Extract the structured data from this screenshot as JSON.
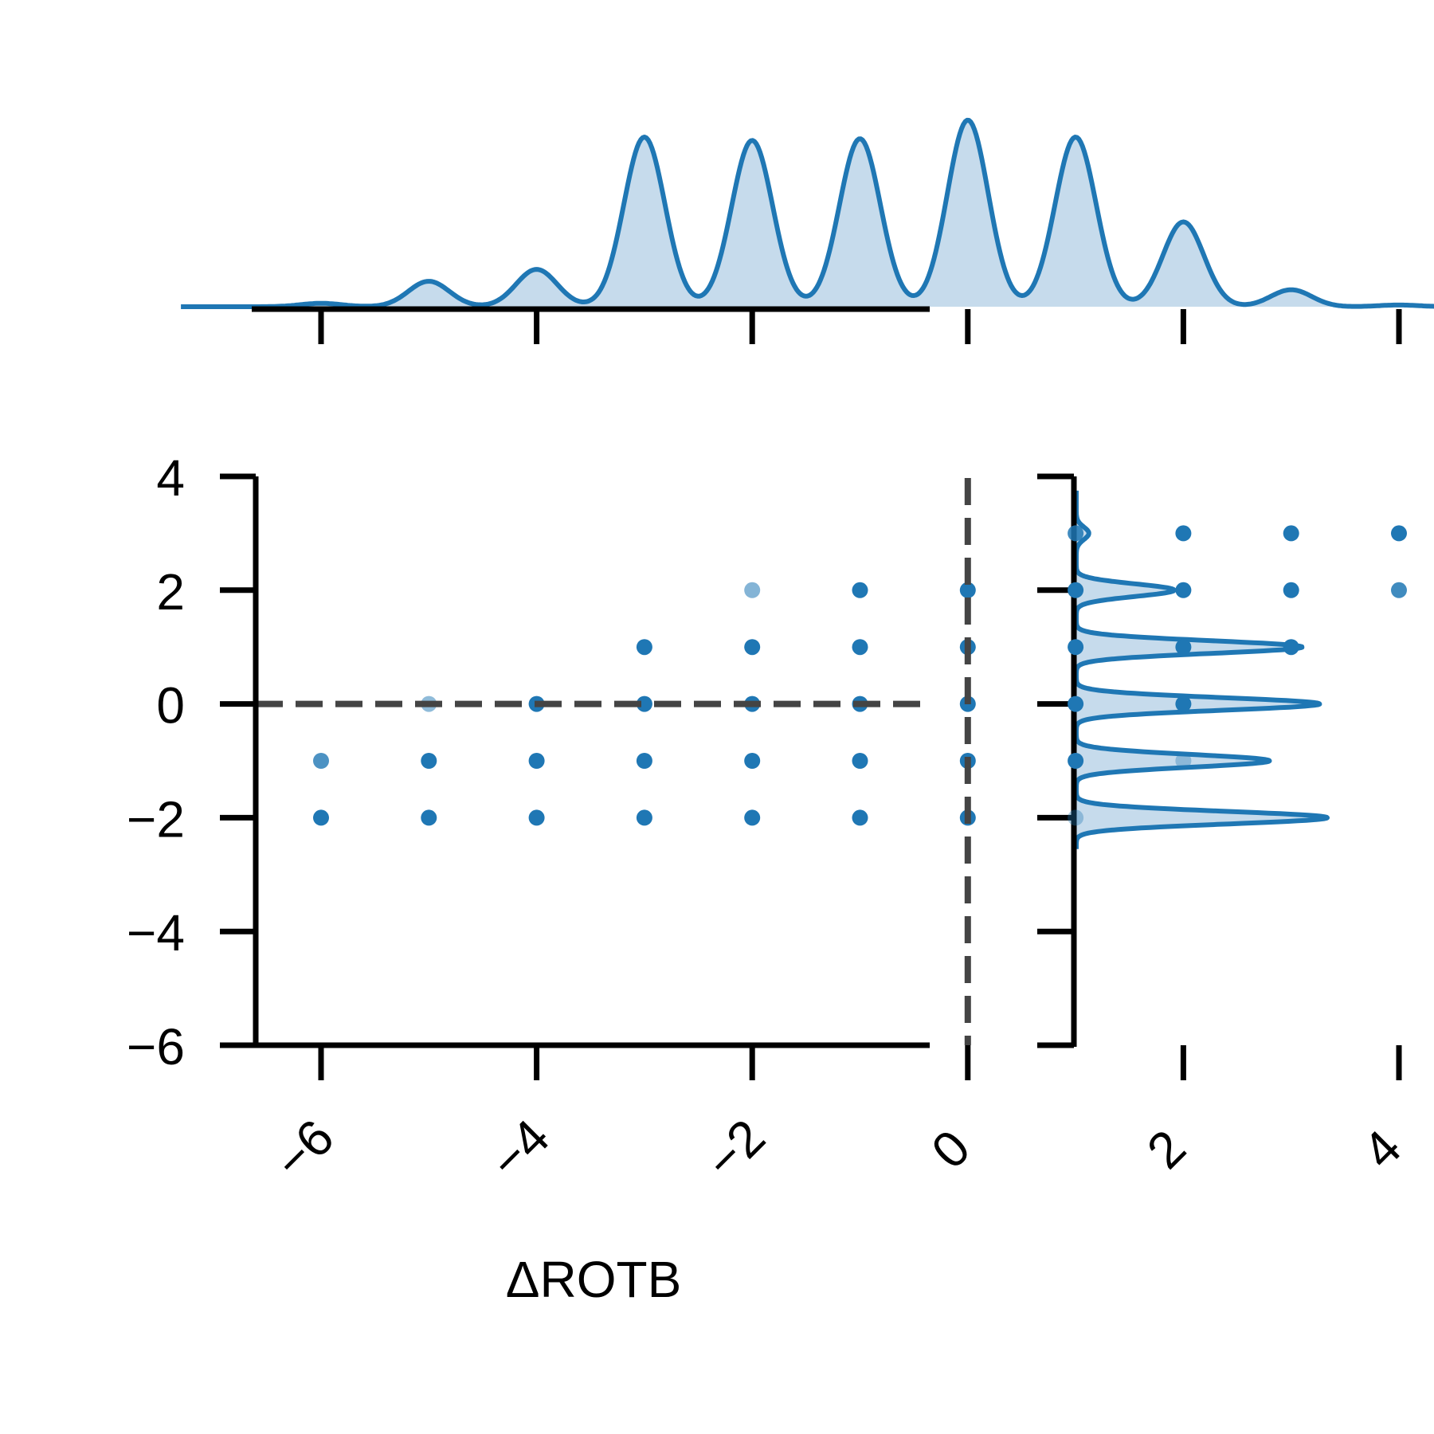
{
  "chart_data": {
    "type": "scatter",
    "title": "",
    "xlabel": "ΔROTB",
    "ylabel": "",
    "xlim": [
      -7.2,
      5.3
    ],
    "ylim": [
      -6,
      4
    ],
    "xticks": [
      -6,
      -4,
      -2,
      0,
      2,
      4
    ],
    "xtick_labels": [
      "−6",
      "−4",
      "−2",
      "0",
      "2",
      "4"
    ],
    "yticks": [
      -6,
      -4,
      -2,
      0,
      2,
      4
    ],
    "ytick_labels": [
      "−6",
      "−4",
      "−2",
      "0",
      "2",
      "4"
    ],
    "grid": false,
    "legend": "none",
    "reference_lines": [
      {
        "orientation": "vertical",
        "value": 0,
        "style": "dashed"
      },
      {
        "orientation": "horizontal",
        "value": 0,
        "style": "dashed"
      }
    ],
    "points": [
      {
        "x": -6,
        "y": -2,
        "alpha": 1.0
      },
      {
        "x": -5,
        "y": -2,
        "alpha": 1.0
      },
      {
        "x": -4,
        "y": -2,
        "alpha": 1.0
      },
      {
        "x": -3,
        "y": -2,
        "alpha": 1.0
      },
      {
        "x": -2,
        "y": -2,
        "alpha": 1.0
      },
      {
        "x": -1,
        "y": -2,
        "alpha": 1.0
      },
      {
        "x": 0,
        "y": -2,
        "alpha": 1.0
      },
      {
        "x": 1,
        "y": -2,
        "alpha": 0.35
      },
      {
        "x": -6,
        "y": -1,
        "alpha": 0.8
      },
      {
        "x": -5,
        "y": -1,
        "alpha": 1.0
      },
      {
        "x": -4,
        "y": -1,
        "alpha": 1.0
      },
      {
        "x": -3,
        "y": -1,
        "alpha": 1.0
      },
      {
        "x": -2,
        "y": -1,
        "alpha": 1.0
      },
      {
        "x": -1,
        "y": -1,
        "alpha": 1.0
      },
      {
        "x": 0,
        "y": -1,
        "alpha": 1.0
      },
      {
        "x": 1,
        "y": -1,
        "alpha": 1.0
      },
      {
        "x": 2,
        "y": -1,
        "alpha": 0.35
      },
      {
        "x": -5,
        "y": 0,
        "alpha": 0.5
      },
      {
        "x": -4,
        "y": 0,
        "alpha": 1.0
      },
      {
        "x": -3,
        "y": 0,
        "alpha": 1.0
      },
      {
        "x": -2,
        "y": 0,
        "alpha": 1.0
      },
      {
        "x": -1,
        "y": 0,
        "alpha": 1.0
      },
      {
        "x": 0,
        "y": 0,
        "alpha": 1.0
      },
      {
        "x": 1,
        "y": 0,
        "alpha": 1.0
      },
      {
        "x": 2,
        "y": 0,
        "alpha": 1.0
      },
      {
        "x": -3,
        "y": 1,
        "alpha": 1.0
      },
      {
        "x": -2,
        "y": 1,
        "alpha": 1.0
      },
      {
        "x": -1,
        "y": 1,
        "alpha": 1.0
      },
      {
        "x": 0,
        "y": 1,
        "alpha": 1.0
      },
      {
        "x": 1,
        "y": 1,
        "alpha": 1.0
      },
      {
        "x": 2,
        "y": 1,
        "alpha": 1.0
      },
      {
        "x": 3,
        "y": 1,
        "alpha": 1.0
      },
      {
        "x": -2,
        "y": 2,
        "alpha": 0.55
      },
      {
        "x": -1,
        "y": 2,
        "alpha": 1.0
      },
      {
        "x": 0,
        "y": 2,
        "alpha": 1.0
      },
      {
        "x": 1,
        "y": 2,
        "alpha": 1.0
      },
      {
        "x": 2,
        "y": 2,
        "alpha": 1.0
      },
      {
        "x": 3,
        "y": 2,
        "alpha": 1.0
      },
      {
        "x": 4,
        "y": 2,
        "alpha": 0.85
      },
      {
        "x": 1,
        "y": 3,
        "alpha": 0.85
      },
      {
        "x": 2,
        "y": 3,
        "alpha": 1.0
      },
      {
        "x": 3,
        "y": 3,
        "alpha": 1.0
      },
      {
        "x": 4,
        "y": 3,
        "alpha": 1.0
      }
    ],
    "marginal_x_density": {
      "type": "area",
      "peaks": [
        {
          "x": -6,
          "height": 0.02
        },
        {
          "x": -5,
          "height": 0.15
        },
        {
          "x": -4,
          "height": 0.22
        },
        {
          "x": -3,
          "height": 1.0
        },
        {
          "x": -2,
          "height": 0.98
        },
        {
          "x": -1,
          "height": 0.99
        },
        {
          "x": 0,
          "height": 1.1
        },
        {
          "x": 1,
          "height": 1.0
        },
        {
          "x": 2,
          "height": 0.5
        },
        {
          "x": 3,
          "height": 0.1
        },
        {
          "x": 4,
          "height": 0.01
        }
      ]
    },
    "marginal_y_density": {
      "type": "area",
      "peaks": [
        {
          "y": -2,
          "height": 1.0
        },
        {
          "y": -1,
          "height": 0.77
        },
        {
          "y": 0,
          "height": 0.97
        },
        {
          "y": 1,
          "height": 0.9
        },
        {
          "y": 2,
          "height": 0.39
        },
        {
          "y": 3,
          "height": 0.05
        }
      ]
    },
    "colors": {
      "series": "#1f77b4",
      "fill": "#c6dbec",
      "axis": "#000000",
      "reference_line": "#444444"
    }
  }
}
